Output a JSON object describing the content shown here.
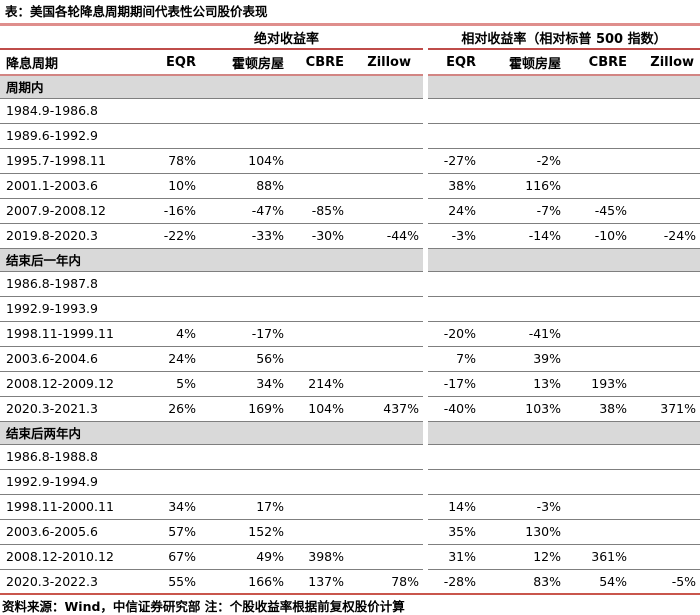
{
  "title": "表：美国各轮降息周期期间代表性公司股价表现",
  "table": {
    "cycle_header": "降息周期",
    "groups": [
      "绝对收益率",
      "相对收益率（相对标普 500 指数）"
    ],
    "company_headers": [
      "EQR",
      "霍顿房屋",
      "CBRE",
      "Zillow"
    ],
    "sections": [
      {
        "label": "周期内",
        "rows": [
          {
            "period": "1984.9-1986.8",
            "abs": [
              "",
              "",
              "",
              ""
            ],
            "rel": [
              "",
              "",
              "",
              ""
            ]
          },
          {
            "period": "1989.6-1992.9",
            "abs": [
              "",
              "",
              "",
              ""
            ],
            "rel": [
              "",
              "",
              "",
              ""
            ]
          },
          {
            "period": "1995.7-1998.11",
            "abs": [
              "78%",
              "104%",
              "",
              ""
            ],
            "rel": [
              "-27%",
              "-2%",
              "",
              ""
            ]
          },
          {
            "period": "2001.1-2003.6",
            "abs": [
              "10%",
              "88%",
              "",
              ""
            ],
            "rel": [
              "38%",
              "116%",
              "",
              ""
            ]
          },
          {
            "period": "2007.9-2008.12",
            "abs": [
              "-16%",
              "-47%",
              "-85%",
              ""
            ],
            "rel": [
              "24%",
              "-7%",
              "-45%",
              ""
            ]
          },
          {
            "period": "2019.8-2020.3",
            "abs": [
              "-22%",
              "-33%",
              "-30%",
              "-44%"
            ],
            "rel": [
              "-3%",
              "-14%",
              "-10%",
              "-24%"
            ]
          }
        ]
      },
      {
        "label": "结束后一年内",
        "rows": [
          {
            "period": "1986.8-1987.8",
            "abs": [
              "",
              "",
              "",
              ""
            ],
            "rel": [
              "",
              "",
              "",
              ""
            ]
          },
          {
            "period": "1992.9-1993.9",
            "abs": [
              "",
              "",
              "",
              ""
            ],
            "rel": [
              "",
              "",
              "",
              ""
            ]
          },
          {
            "period": "1998.11-1999.11",
            "abs": [
              "4%",
              "-17%",
              "",
              ""
            ],
            "rel": [
              "-20%",
              "-41%",
              "",
              ""
            ]
          },
          {
            "period": "2003.6-2004.6",
            "abs": [
              "24%",
              "56%",
              "",
              ""
            ],
            "rel": [
              "7%",
              "39%",
              "",
              ""
            ]
          },
          {
            "period": "2008.12-2009.12",
            "abs": [
              "5%",
              "34%",
              "214%",
              ""
            ],
            "rel": [
              "-17%",
              "13%",
              "193%",
              ""
            ]
          },
          {
            "period": "2020.3-2021.3",
            "abs": [
              "26%",
              "169%",
              "104%",
              "437%"
            ],
            "rel": [
              "-40%",
              "103%",
              "38%",
              "371%"
            ]
          }
        ]
      },
      {
        "label": "结束后两年内",
        "rows": [
          {
            "period": "1986.8-1988.8",
            "abs": [
              "",
              "",
              "",
              ""
            ],
            "rel": [
              "",
              "",
              "",
              ""
            ]
          },
          {
            "period": "1992.9-1994.9",
            "abs": [
              "",
              "",
              "",
              ""
            ],
            "rel": [
              "",
              "",
              "",
              ""
            ]
          },
          {
            "period": "1998.11-2000.11",
            "abs": [
              "34%",
              "17%",
              "",
              ""
            ],
            "rel": [
              "14%",
              "-3%",
              "",
              ""
            ]
          },
          {
            "period": "2003.6-2005.6",
            "abs": [
              "57%",
              "152%",
              "",
              ""
            ],
            "rel": [
              "35%",
              "130%",
              "",
              ""
            ]
          },
          {
            "period": "2008.12-2010.12",
            "abs": [
              "67%",
              "49%",
              "398%",
              ""
            ],
            "rel": [
              "31%",
              "12%",
              "361%",
              ""
            ]
          },
          {
            "period": "2020.3-2022.3",
            "abs": [
              "55%",
              "166%",
              "137%",
              "78%"
            ],
            "rel": [
              "-28%",
              "83%",
              "54%",
              "-5%"
            ]
          }
        ]
      }
    ]
  },
  "footer": "资料来源：Wind，中信证券研究部 注：个股收益率根据前复权股价计算",
  "colors": {
    "title_rule": "#df8e8c",
    "group_rule": "#bf4c4a",
    "header_rule": "#d28583",
    "row_border": "#7f7f7f",
    "section_bg": "#d9d9d9",
    "bottom_rule": "#c9564c"
  }
}
